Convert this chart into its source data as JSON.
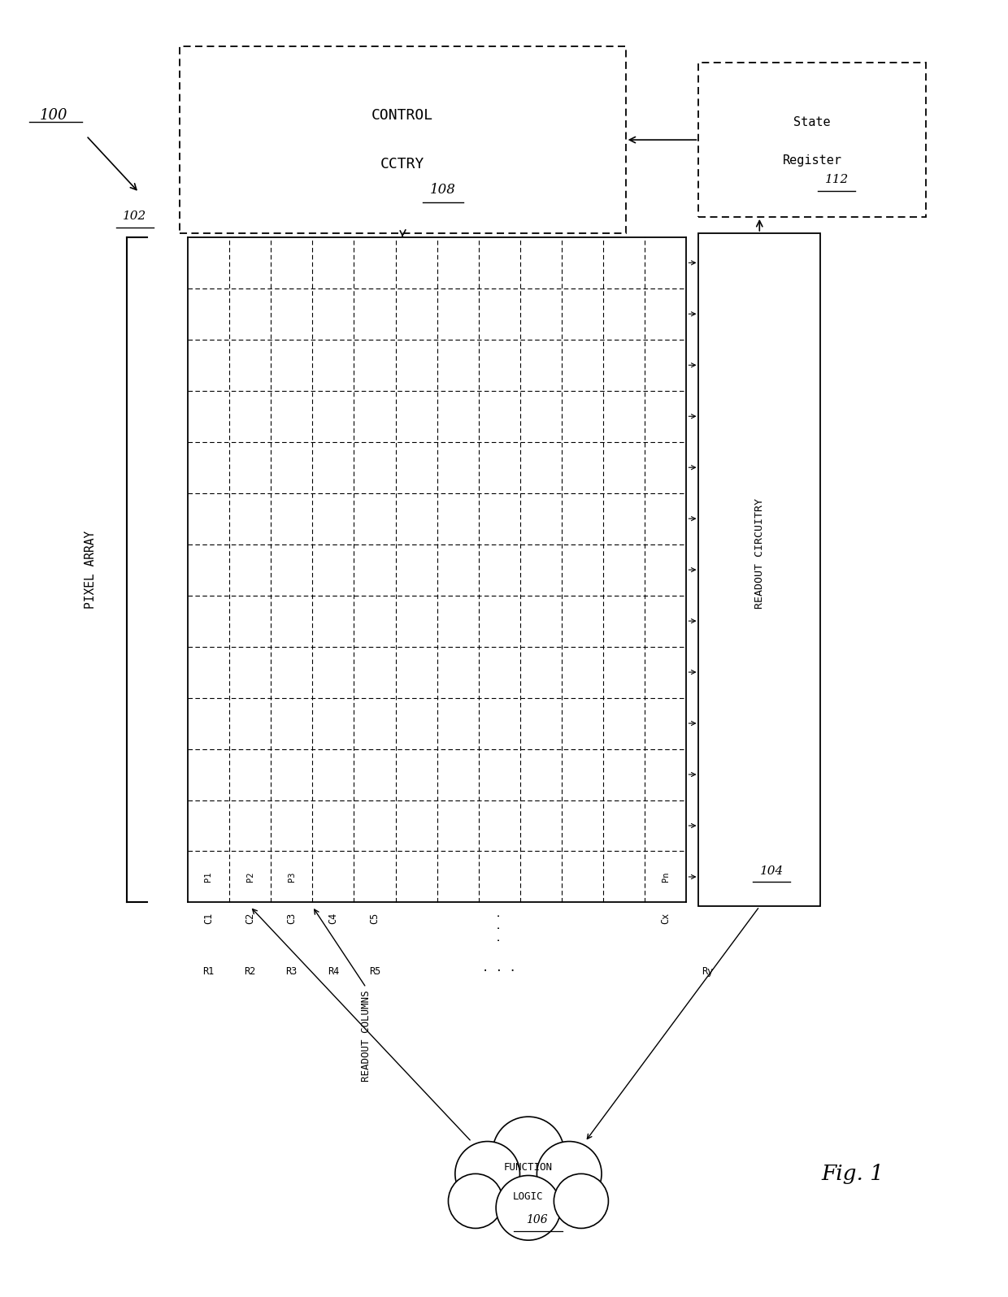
{
  "fig_width": 12.4,
  "fig_height": 15.96,
  "bg_color": "#ffffff",
  "label_100": "100",
  "label_control_1": "CONTROL",
  "label_control_2": "CCTRY",
  "label_108": "108",
  "label_state_1": "State",
  "label_state_2": "Register",
  "label_112": "112",
  "label_pixel_array": "PIXEL ARRAY",
  "label_102": "102",
  "label_readout_circ": "READOUT CIRCUITRY",
  "label_104": "104",
  "label_function_1": "FUNCTION",
  "label_function_2": "LOGIC",
  "label_106": "106",
  "label_readout_columns": "READOUT COLUMNS",
  "label_fig": "Fig. 1",
  "col_labels": [
    "C1",
    "C2",
    "C3",
    "C4",
    "C5",
    "Cx"
  ],
  "pixel_labels": [
    "P1",
    "P2",
    "P3",
    "Pn"
  ],
  "row_labels": [
    "R1",
    "R2",
    "R3",
    "R4",
    "R5",
    "Ry"
  ],
  "grid_rows": 13,
  "grid_cols": 12
}
